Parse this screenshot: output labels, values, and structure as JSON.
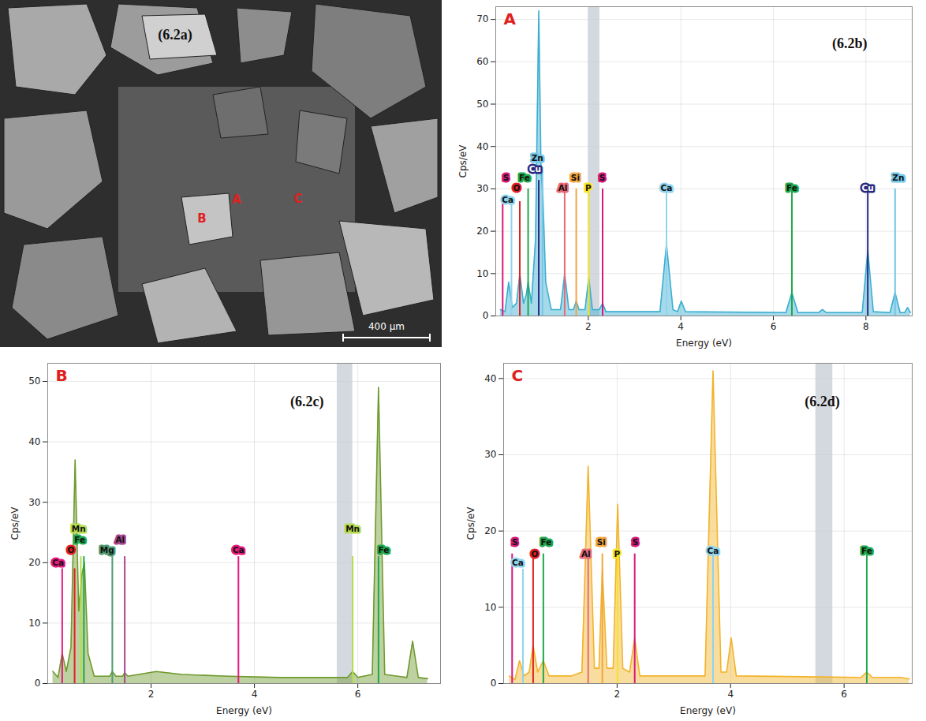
{
  "image_panel": {
    "subtitle": "(6.2a)",
    "points": [
      "A",
      "B",
      "C"
    ],
    "scale_bar": "400 µm"
  },
  "chart_data": [
    {
      "type": "area",
      "title": "A",
      "subtitle": "(6.2b)",
      "x_label": "Energy (eV)",
      "y_label": "Cps/eV",
      "color": "#3aaed0",
      "x": [
        0.1,
        0.2,
        0.28,
        0.36,
        0.45,
        0.52,
        0.6,
        0.66,
        0.7,
        0.77,
        0.86,
        0.93,
        0.98,
        1.02,
        1.08,
        1.2,
        1.4,
        1.49,
        1.58,
        1.68,
        1.74,
        1.8,
        1.93,
        2.01,
        2.09,
        2.24,
        2.31,
        2.38,
        3.55,
        3.69,
        3.83,
        3.93,
        4.01,
        4.1,
        6.27,
        6.4,
        6.53,
        6.98,
        7.06,
        7.14,
        7.92,
        8.04,
        8.16,
        8.52,
        8.63,
        8.74,
        8.84,
        8.9,
        8.96
      ],
      "values": [
        1.5,
        1,
        8,
        2,
        3,
        10,
        3,
        5,
        8,
        3,
        18,
        72,
        34,
        28,
        8,
        1.5,
        1.5,
        10,
        1.5,
        1.5,
        3.5,
        1.5,
        1.5,
        9,
        1.5,
        1.5,
        3,
        1,
        1,
        17,
        1.5,
        1,
        3.5,
        1,
        0.8,
        5.5,
        0.8,
        0.8,
        1.5,
        0.8,
        0.8,
        15.5,
        1,
        0.8,
        5.5,
        0.8,
        0.8,
        2,
        0.8
      ],
      "xlim": [
        0,
        9
      ],
      "xticks": [
        2,
        4,
        6,
        8
      ],
      "ylim": [
        0,
        73
      ],
      "yticks": [
        0,
        10,
        20,
        30,
        40,
        50,
        60,
        70
      ],
      "grid": true,
      "highlight": [
        2.0,
        2.25
      ],
      "element_lines": [
        {
          "name": "S",
          "energy": 0.15,
          "height": 27,
          "color": "#d6187c",
          "label_x": 0.22,
          "label_y": 32.5
        },
        {
          "name": "Ca",
          "energy": 0.34,
          "height": 27,
          "color": "#8fd3ee",
          "label_x": 0.26,
          "label_y": 27.4
        },
        {
          "name": "O",
          "energy": 0.52,
          "height": 27,
          "color": "#e31e24",
          "label_x": 0.45,
          "label_y": 30.2
        },
        {
          "name": "Fe",
          "energy": 0.7,
          "height": 30,
          "color": "#1ea84b",
          "label_x": 0.62,
          "label_y": 32.5
        },
        {
          "name": "Cu",
          "energy": 0.93,
          "height": 32,
          "color": "#27287f",
          "label_x": 0.85,
          "label_y": 34.7
        },
        {
          "name": "Zn",
          "energy": 1.01,
          "height": 35,
          "color": "#74c6e6",
          "label_x": 0.9,
          "label_y": 37.3
        },
        {
          "name": "Al",
          "energy": 1.49,
          "height": 30,
          "color": "#e86a78",
          "label_x": 1.45,
          "label_y": 30.2
        },
        {
          "name": "Si",
          "energy": 1.74,
          "height": 30,
          "color": "#f2a540",
          "label_x": 1.72,
          "label_y": 32.5
        },
        {
          "name": "P",
          "energy": 2.01,
          "height": 30,
          "color": "#f7e51e",
          "label_x": 2.0,
          "label_y": 30.2
        },
        {
          "name": "S",
          "energy": 2.31,
          "height": 30,
          "color": "#d6187c",
          "label_x": 2.3,
          "label_y": 32.5
        },
        {
          "name": "Ca",
          "energy": 3.69,
          "height": 30,
          "color": "#8fd3ee",
          "label_x": 3.69,
          "label_y": 30.2
        },
        {
          "name": "Fe",
          "energy": 6.4,
          "height": 30,
          "color": "#1ea84b",
          "label_x": 6.4,
          "label_y": 30.2
        },
        {
          "name": "Cu",
          "energy": 8.04,
          "height": 30,
          "color": "#27287f",
          "label_x": 8.04,
          "label_y": 30.2
        },
        {
          "name": "Zn",
          "energy": 8.63,
          "height": 30,
          "color": "#74c6e6",
          "label_x": 8.7,
          "label_y": 32.5
        }
      ]
    },
    {
      "type": "area",
      "title": "B",
      "subtitle": "(6.2c)",
      "x_label": "Energy (eV)",
      "y_label": "Cps/eV",
      "color": "#6f9a2e",
      "x": [
        0.1,
        0.2,
        0.28,
        0.36,
        0.45,
        0.53,
        0.6,
        0.66,
        0.71,
        0.78,
        0.9,
        1.2,
        1.25,
        1.32,
        1.45,
        1.49,
        1.55,
        2.1,
        2.6,
        3.5,
        4.5,
        5.8,
        5.9,
        6.0,
        6.28,
        6.4,
        6.52,
        6.95,
        7.06,
        7.17,
        7.35
      ],
      "values": [
        2,
        1,
        5,
        2,
        6,
        37,
        12,
        18,
        20,
        5,
        1.2,
        1.2,
        2,
        1.2,
        1.2,
        1.8,
        1.2,
        2,
        1.5,
        1.2,
        1,
        1,
        2,
        1,
        1.5,
        49,
        1.5,
        1,
        7,
        1,
        0.8
      ],
      "xlim": [
        0,
        7.6
      ],
      "xticks": [
        2,
        4,
        6
      ],
      "ylim": [
        0,
        53
      ],
      "yticks": [
        0,
        10,
        20,
        30,
        40,
        50
      ],
      "grid": true,
      "highlight": [
        5.6,
        5.9
      ],
      "element_lines": [
        {
          "name": "Ca",
          "energy": 0.28,
          "height": 19,
          "color": "#e6177d",
          "label_x": 0.2,
          "label_y": 20
        },
        {
          "name": "O",
          "energy": 0.52,
          "height": 19,
          "color": "#e31e24",
          "label_x": 0.45,
          "label_y": 22
        },
        {
          "name": "Mn",
          "energy": 0.64,
          "height": 21,
          "color": "#b5dc4a",
          "label_x": 0.6,
          "label_y": 25.6
        },
        {
          "name": "Fe",
          "energy": 0.7,
          "height": 21,
          "color": "#1ea84b",
          "label_x": 0.62,
          "label_y": 23.8
        },
        {
          "name": "Mg",
          "energy": 1.25,
          "height": 21,
          "color": "#4f9a72",
          "label_x": 1.15,
          "label_y": 22
        },
        {
          "name": "Al",
          "energy": 1.49,
          "height": 21,
          "color": "#a8458f",
          "label_x": 1.4,
          "label_y": 23.8
        },
        {
          "name": "Ca",
          "energy": 3.69,
          "height": 21,
          "color": "#e6177d",
          "label_x": 3.69,
          "label_y": 22
        },
        {
          "name": "Mn",
          "energy": 5.9,
          "height": 21,
          "color": "#b5dc4a",
          "label_x": 5.9,
          "label_y": 25.6
        },
        {
          "name": "Fe",
          "energy": 6.4,
          "height": 21,
          "color": "#1ea84b",
          "label_x": 6.5,
          "label_y": 22
        }
      ]
    },
    {
      "type": "area",
      "title": "C",
      "subtitle": "(6.2d)",
      "x_label": "Energy (eV)",
      "y_label": "Cps/eV",
      "color": "#f2b32a",
      "x": [
        0.1,
        0.2,
        0.28,
        0.36,
        0.45,
        0.52,
        0.6,
        0.7,
        0.8,
        1.0,
        1.2,
        1.38,
        1.49,
        1.6,
        1.68,
        1.74,
        1.82,
        1.93,
        2.01,
        2.1,
        2.22,
        2.31,
        2.4,
        3.0,
        3.55,
        3.69,
        3.83,
        3.93,
        4.01,
        4.1,
        6.3,
        6.4,
        6.5,
        7.0,
        7.15
      ],
      "values": [
        1,
        0.5,
        3,
        1,
        1.5,
        5,
        1.5,
        3,
        1,
        1,
        1,
        1.5,
        28.5,
        2,
        2,
        15,
        2,
        2,
        23.5,
        2,
        1.5,
        6,
        1,
        1,
        1,
        41,
        1.5,
        1.5,
        6,
        1,
        0.8,
        1.5,
        0.8,
        0.8,
        0.6
      ],
      "xlim": [
        0,
        7.2
      ],
      "xticks": [
        2,
        4,
        6
      ],
      "ylim": [
        0,
        42
      ],
      "yticks": [
        0,
        10,
        20,
        30,
        40
      ],
      "grid": true,
      "highlight": [
        5.5,
        5.8
      ],
      "element_lines": [
        {
          "name": "S",
          "energy": 0.15,
          "height": 17,
          "color": "#d6187c",
          "label_x": 0.2,
          "label_y": 18.5
        },
        {
          "name": "Ca",
          "energy": 0.34,
          "height": 15,
          "color": "#8fd3ee",
          "label_x": 0.25,
          "label_y": 15.8
        },
        {
          "name": "O",
          "energy": 0.52,
          "height": 17,
          "color": "#e31e24",
          "label_x": 0.55,
          "label_y": 17
        },
        {
          "name": "Fe",
          "energy": 0.7,
          "height": 17,
          "color": "#1ea84b",
          "label_x": 0.75,
          "label_y": 18.5
        },
        {
          "name": "Al",
          "energy": 1.49,
          "height": 17,
          "color": "#e86a78",
          "label_x": 1.45,
          "label_y": 17
        },
        {
          "name": "Si",
          "energy": 1.74,
          "height": 17,
          "color": "#f2a540",
          "label_x": 1.72,
          "label_y": 18.5
        },
        {
          "name": "P",
          "energy": 2.01,
          "height": 17,
          "color": "#f7e51e",
          "label_x": 2.0,
          "label_y": 17
        },
        {
          "name": "S",
          "energy": 2.31,
          "height": 17,
          "color": "#d6187c",
          "label_x": 2.32,
          "label_y": 18.5
        },
        {
          "name": "Ca",
          "energy": 3.69,
          "height": 17,
          "color": "#8fd3ee",
          "label_x": 3.69,
          "label_y": 17.4
        },
        {
          "name": "Fe",
          "energy": 6.4,
          "height": 17,
          "color": "#1ea84b",
          "label_x": 6.4,
          "label_y": 17.4
        }
      ]
    }
  ]
}
